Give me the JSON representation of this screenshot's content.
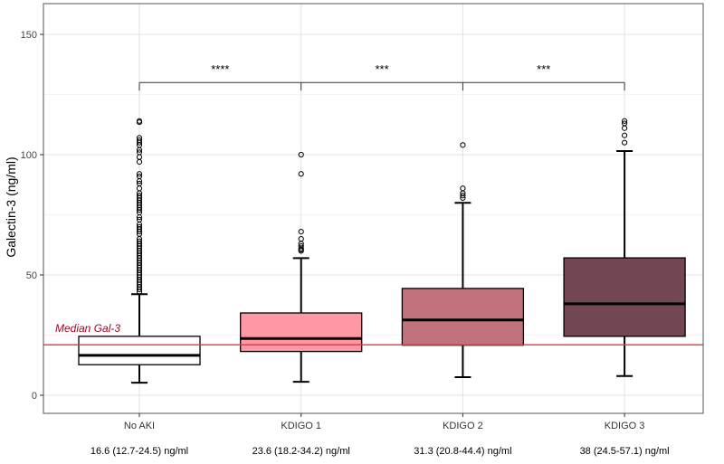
{
  "chart_data": {
    "type": "boxplot",
    "ylabel": "Galectin-3 (ng/ml)",
    "ylim": [
      -6,
      165
    ],
    "yticks": [
      0,
      50,
      100,
      150
    ],
    "grid": true,
    "categories": [
      "No AKI",
      "KDIGO 1",
      "KDIGO 2",
      "KDIGO 3"
    ],
    "summaries": [
      "16.6 (12.7-24.5) ng/ml",
      "23.6 (18.2-34.2) ng/ml",
      "31.3 (20.8-44.4) ng/ml",
      "38 (24.5-57.1) ng/ml"
    ],
    "boxes": [
      {
        "category": "No AKI",
        "whisker_low": 5.2,
        "q1": 12.7,
        "median": 16.6,
        "q3": 24.5,
        "whisker_high": 42.0,
        "color": "#ffffff",
        "outliers": [
          114,
          113.5,
          107,
          106,
          105,
          104,
          102,
          101,
          99,
          97,
          92,
          91,
          89,
          88,
          86,
          84,
          83,
          82,
          81,
          80,
          79,
          78,
          77,
          76,
          74,
          73,
          71,
          70,
          69,
          68,
          67,
          65,
          64,
          63,
          62,
          61,
          60,
          59,
          58,
          57,
          56,
          55,
          54,
          53,
          52,
          51,
          50,
          49,
          48,
          47,
          46,
          45,
          44,
          43
        ]
      },
      {
        "category": "KDIGO 1",
        "whisker_low": 5.6,
        "q1": 18.2,
        "median": 23.6,
        "q3": 34.2,
        "whisker_high": 57.0,
        "color": "#ff97a5",
        "outliers": [
          100,
          92,
          68,
          65,
          63,
          62,
          61,
          60.5,
          60
        ]
      },
      {
        "category": "KDIGO 2",
        "whisker_low": 7.5,
        "q1": 20.8,
        "median": 31.3,
        "q3": 44.4,
        "whisker_high": 80.0,
        "color": "#c2727c",
        "outliers": [
          104,
          86,
          84,
          83,
          82
        ]
      },
      {
        "category": "KDIGO 3",
        "whisker_low": 8.0,
        "q1": 24.5,
        "median": 38.0,
        "q3": 57.1,
        "whisker_high": 101.5,
        "color": "#744853",
        "outliers": [
          114,
          113,
          111,
          108,
          105
        ]
      }
    ],
    "reference_line": {
      "value": 21,
      "label": "Median Gal-3",
      "color": "#e53935"
    },
    "significance": {
      "y": 130,
      "labels": [
        "****",
        "***",
        "***"
      ]
    }
  }
}
